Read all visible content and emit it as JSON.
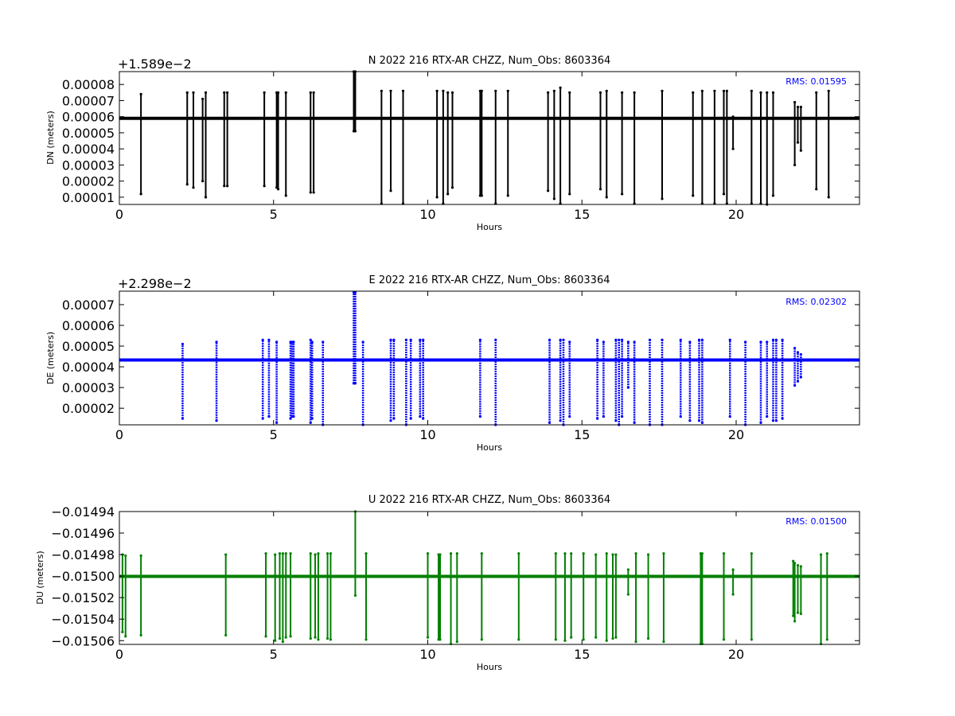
{
  "chart_data": [
    {
      "type": "scatter",
      "title": "N 2022 216 RTX-AR  CHZZ, Num_Obs: 8603364",
      "offset_label": "+1.589e−2",
      "xlabel": "Hours",
      "ylabel": "DN (meters)",
      "rms_label": "RMS:  0.01595",
      "color": "#000000",
      "xlim": [
        0,
        24
      ],
      "ylim": [
        5.5e-06,
        8.8e-05
      ],
      "xticks": [
        0,
        5,
        10,
        15,
        20
      ],
      "xtick_labels": [
        "0",
        "5",
        "10",
        "15",
        "20"
      ],
      "yticks": [
        1e-05,
        2e-05,
        3e-05,
        4e-05,
        5e-05,
        6e-05,
        7e-05,
        8e-05
      ],
      "ytick_labels": [
        "0.00001",
        "0.00002",
        "0.00003",
        "0.00004",
        "0.00005",
        "0.00006",
        "0.00007",
        "0.00008"
      ],
      "baseline": 5.9e-05,
      "spikes": [
        [
          0.7,
          1.2e-05,
          7.4e-05
        ],
        [
          2.2,
          1.8e-05,
          7.5e-05
        ],
        [
          2.4,
          1.6e-05,
          7.5e-05
        ],
        [
          2.7,
          2e-05,
          7.1e-05
        ],
        [
          2.8,
          1e-05,
          7.5e-05
        ],
        [
          3.4,
          1.7e-05,
          7.5e-05
        ],
        [
          3.5,
          1.7e-05,
          7.5e-05
        ],
        [
          4.7,
          1.7e-05,
          7.5e-05
        ],
        [
          5.1,
          1.6e-05,
          7.5e-05
        ],
        [
          5.15,
          1.5e-05,
          7.5e-05
        ],
        [
          5.4,
          1.1e-05,
          7.5e-05
        ],
        [
          6.2,
          1.3e-05,
          7.5e-05
        ],
        [
          6.3,
          1.3e-05,
          7.5e-05
        ],
        [
          7.6,
          5.1e-05,
          8.8e-05
        ],
        [
          7.65,
          5.1e-05,
          8.8e-05
        ],
        [
          8.5,
          6e-06,
          7.6e-05
        ],
        [
          8.8,
          1.4e-05,
          7.6e-05
        ],
        [
          9.2,
          6e-06,
          7.6e-05
        ],
        [
          10.3,
          1e-05,
          7.6e-05
        ],
        [
          10.5,
          6e-06,
          7.6e-05
        ],
        [
          10.65,
          1.2e-05,
          7.5e-05
        ],
        [
          10.8,
          1.6e-05,
          7.5e-05
        ],
        [
          11.7,
          1.1e-05,
          7.6e-05
        ],
        [
          11.75,
          1.1e-05,
          7.6e-05
        ],
        [
          12.2,
          6e-06,
          7.6e-05
        ],
        [
          12.6,
          1.1e-05,
          7.6e-05
        ],
        [
          13.9,
          1.4e-05,
          7.5e-05
        ],
        [
          14.1,
          9e-06,
          7.6e-05
        ],
        [
          14.3,
          6e-06,
          7.8e-05
        ],
        [
          14.6,
          1.2e-05,
          7.5e-05
        ],
        [
          15.6,
          1.5e-05,
          7.5e-05
        ],
        [
          15.8,
          1e-05,
          7.6e-05
        ],
        [
          16.3,
          1.2e-05,
          7.5e-05
        ],
        [
          16.7,
          6e-06,
          7.5e-05
        ],
        [
          17.6,
          9e-06,
          7.6e-05
        ],
        [
          18.6,
          1.1e-05,
          7.5e-05
        ],
        [
          18.9,
          6e-06,
          7.6e-05
        ],
        [
          19.3,
          6e-06,
          7.6e-05
        ],
        [
          19.6,
          1.2e-05,
          7.6e-05
        ],
        [
          19.7,
          6e-06,
          7.6e-05
        ],
        [
          19.9,
          4e-05,
          6e-05
        ],
        [
          20.5,
          6e-06,
          7.6e-05
        ],
        [
          20.8,
          6e-06,
          7.5e-05
        ],
        [
          21.0,
          5e-06,
          7.5e-05
        ],
        [
          21.2,
          1.1e-05,
          7.5e-05
        ],
        [
          21.9,
          3e-05,
          6.9e-05
        ],
        [
          22.0,
          4.4e-05,
          6.6e-05
        ],
        [
          22.1,
          3.9e-05,
          6.6e-05
        ],
        [
          22.6,
          1.5e-05,
          7.5e-05
        ],
        [
          23.0,
          1e-05,
          7.6e-05
        ]
      ]
    },
    {
      "type": "scatter",
      "title": "E 2022 216 RTX-AR  CHZZ, Num_Obs: 8603364",
      "offset_label": "+2.298e−2",
      "xlabel": "Hours",
      "ylabel": "DE (meters)",
      "rms_label": "RMS:  0.02302",
      "color": "#0000ff",
      "xlim": [
        0,
        24
      ],
      "ylim": [
        1.2e-05,
        7.65e-05
      ],
      "xticks": [
        0,
        5,
        10,
        15,
        20
      ],
      "xtick_labels": [
        "0",
        "5",
        "10",
        "15",
        "20"
      ],
      "yticks": [
        2e-05,
        3e-05,
        4e-05,
        5e-05,
        6e-05,
        7e-05
      ],
      "ytick_labels": [
        "0.00002",
        "0.00003",
        "0.00004",
        "0.00005",
        "0.00006",
        "0.00007"
      ],
      "baseline": 4.33e-05,
      "spikes": [
        [
          2.05,
          1.5e-05,
          5.1e-05
        ],
        [
          3.15,
          1.4e-05,
          5.2e-05
        ],
        [
          4.65,
          1.5e-05,
          5.3e-05
        ],
        [
          4.85,
          1.6e-05,
          5.3e-05
        ],
        [
          5.1,
          1.3e-05,
          5.2e-05
        ],
        [
          5.55,
          1.5e-05,
          5.2e-05
        ],
        [
          5.6,
          1.6e-05,
          5.2e-05
        ],
        [
          5.65,
          1.6e-05,
          5.2e-05
        ],
        [
          6.2,
          1.3e-05,
          5.3e-05
        ],
        [
          6.25,
          1.5e-05,
          5.2e-05
        ],
        [
          6.6,
          1.2e-05,
          5.2e-05
        ],
        [
          7.6,
          3.2e-05,
          7.6e-05
        ],
        [
          7.65,
          3.2e-05,
          7.6e-05
        ],
        [
          7.9,
          1.2e-05,
          5.2e-05
        ],
        [
          8.8,
          1.4e-05,
          5.3e-05
        ],
        [
          8.9,
          1.5e-05,
          5.3e-05
        ],
        [
          9.3,
          1.2e-05,
          5.3e-05
        ],
        [
          9.45,
          1.5e-05,
          5.3e-05
        ],
        [
          9.75,
          1.6e-05,
          5.3e-05
        ],
        [
          9.85,
          1.5e-05,
          5.3e-05
        ],
        [
          11.7,
          1.6e-05,
          5.3e-05
        ],
        [
          12.2,
          1.2e-05,
          5.3e-05
        ],
        [
          13.95,
          1.3e-05,
          5.3e-05
        ],
        [
          14.3,
          1.4e-05,
          5.3e-05
        ],
        [
          14.4,
          1.2e-05,
          5.3e-05
        ],
        [
          14.6,
          1.6e-05,
          5.2e-05
        ],
        [
          15.5,
          1.5e-05,
          5.3e-05
        ],
        [
          15.7,
          1.6e-05,
          5.2e-05
        ],
        [
          16.1,
          1.4e-05,
          5.3e-05
        ],
        [
          16.2,
          1.2e-05,
          5.3e-05
        ],
        [
          16.3,
          1.6e-05,
          5.3e-05
        ],
        [
          16.5,
          3e-05,
          5.2e-05
        ],
        [
          16.7,
          1.3e-05,
          5.2e-05
        ],
        [
          17.2,
          1.2e-05,
          5.3e-05
        ],
        [
          17.6,
          1.2e-05,
          5.3e-05
        ],
        [
          18.2,
          1.6e-05,
          5.3e-05
        ],
        [
          18.5,
          1.4e-05,
          5.2e-05
        ],
        [
          18.8,
          1.4e-05,
          5.3e-05
        ],
        [
          18.9,
          1.3e-05,
          5.3e-05
        ],
        [
          19.8,
          1.6e-05,
          5.3e-05
        ],
        [
          20.3,
          1.2e-05,
          5.2e-05
        ],
        [
          20.8,
          1.3e-05,
          5.2e-05
        ],
        [
          21.0,
          1.6e-05,
          5.2e-05
        ],
        [
          21.2,
          1.4e-05,
          5.3e-05
        ],
        [
          21.3,
          1.4e-05,
          5.3e-05
        ],
        [
          21.5,
          1.5e-05,
          5.3e-05
        ],
        [
          21.9,
          3.1e-05,
          4.9e-05
        ],
        [
          22.0,
          3.3e-05,
          4.7e-05
        ],
        [
          22.1,
          3.5e-05,
          4.6e-05
        ]
      ]
    },
    {
      "type": "scatter",
      "title": "U 2022 216 RTX-AR  CHZZ, Num_Obs: 8603364",
      "offset_label": "",
      "xlabel": "Hours",
      "ylabel": "DU (meters)",
      "rms_label": "RMS:  0.01500",
      "color": "#008000",
      "xlim": [
        0,
        24
      ],
      "ylim": [
        -0.0150635,
        -0.01494
      ],
      "xticks": [
        0,
        5,
        10,
        15,
        20
      ],
      "xtick_labels": [
        "0",
        "5",
        "10",
        "15",
        "20"
      ],
      "yticks": [
        -0.01494,
        -0.01496,
        -0.01498,
        -0.015,
        -0.01502,
        -0.01504,
        -0.01506
      ],
      "ytick_labels": [
        "−0.01494",
        "−0.01496",
        "−0.01498",
        "−0.01500",
        "−0.01502",
        "−0.01504",
        "−0.01506"
      ],
      "baseline": -0.0150003,
      "spikes": [
        [
          0.1,
          -0.015052,
          -0.01498
        ],
        [
          0.2,
          -0.015056,
          -0.014981
        ],
        [
          0.7,
          -0.015055,
          -0.014981
        ],
        [
          3.45,
          -0.015055,
          -0.01498
        ],
        [
          4.75,
          -0.015056,
          -0.014979
        ],
        [
          5.05,
          -0.01506,
          -0.01498
        ],
        [
          5.2,
          -0.015058,
          -0.014979
        ],
        [
          5.3,
          -0.015061,
          -0.014979
        ],
        [
          5.4,
          -0.015057,
          -0.014979
        ],
        [
          5.55,
          -0.015056,
          -0.014979
        ],
        [
          6.2,
          -0.015058,
          -0.014979
        ],
        [
          6.35,
          -0.015057,
          -0.01498
        ],
        [
          6.45,
          -0.015059,
          -0.014979
        ],
        [
          6.75,
          -0.015058,
          -0.014979
        ],
        [
          6.85,
          -0.015059,
          -0.014979
        ],
        [
          7.65,
          -0.015018,
          -0.01494
        ],
        [
          8.0,
          -0.015059,
          -0.014979
        ],
        [
          10.0,
          -0.015057,
          -0.014979
        ],
        [
          10.35,
          -0.015059,
          -0.01498
        ],
        [
          10.4,
          -0.015059,
          -0.01498
        ],
        [
          10.75,
          -0.015063,
          -0.014979
        ],
        [
          10.95,
          -0.015061,
          -0.014979
        ],
        [
          11.75,
          -0.015059,
          -0.014979
        ],
        [
          12.95,
          -0.015059,
          -0.014979
        ],
        [
          14.15,
          -0.015059,
          -0.014979
        ],
        [
          14.45,
          -0.01506,
          -0.014979
        ],
        [
          14.65,
          -0.015057,
          -0.014979
        ],
        [
          15.05,
          -0.015059,
          -0.014979
        ],
        [
          15.45,
          -0.015057,
          -0.01498
        ],
        [
          15.8,
          -0.01506,
          -0.014979
        ],
        [
          16.0,
          -0.015058,
          -0.01498
        ],
        [
          16.1,
          -0.015057,
          -0.01498
        ],
        [
          16.5,
          -0.015017,
          -0.014994
        ],
        [
          16.75,
          -0.015061,
          -0.014979
        ],
        [
          17.15,
          -0.015058,
          -0.01498
        ],
        [
          17.65,
          -0.015061,
          -0.014979
        ],
        [
          18.85,
          -0.015063,
          -0.014979
        ],
        [
          18.9,
          -0.015063,
          -0.014979
        ],
        [
          19.6,
          -0.015059,
          -0.014979
        ],
        [
          19.9,
          -0.015017,
          -0.014994
        ],
        [
          20.5,
          -0.015059,
          -0.014979
        ],
        [
          21.85,
          -0.015037,
          -0.014986
        ],
        [
          21.9,
          -0.015042,
          -0.014988
        ],
        [
          22.0,
          -0.015034,
          -0.01499
        ],
        [
          22.1,
          -0.015035,
          -0.014991
        ],
        [
          22.75,
          -0.015063,
          -0.01498
        ],
        [
          22.95,
          -0.015059,
          -0.014979
        ]
      ]
    }
  ]
}
